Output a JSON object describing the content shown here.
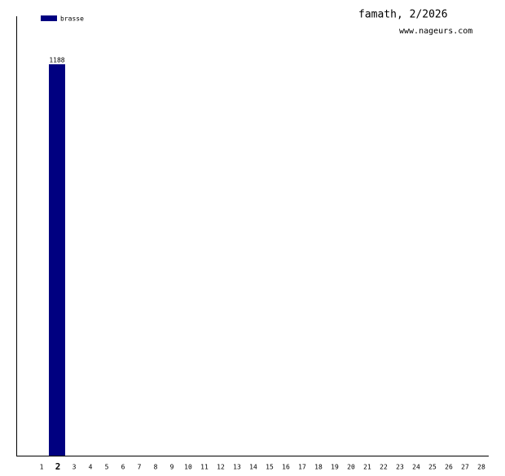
{
  "chart_data": {
    "type": "bar",
    "title": "famath, 2/2026",
    "subtitle": "www.nageurs.com",
    "categories": [
      "1",
      "2",
      "3",
      "4",
      "5",
      "6",
      "7",
      "8",
      "9",
      "10",
      "11",
      "12",
      "13",
      "14",
      "15",
      "16",
      "17",
      "18",
      "19",
      "20",
      "21",
      "22",
      "23",
      "24",
      "25",
      "26",
      "27",
      "28"
    ],
    "series": [
      {
        "name": "brasse",
        "color": "#000080",
        "values": [
          null,
          1188,
          null,
          null,
          null,
          null,
          null,
          null,
          null,
          null,
          null,
          null,
          null,
          null,
          null,
          null,
          null,
          null,
          null,
          null,
          null,
          null,
          null,
          null,
          null,
          null,
          null,
          null
        ]
      }
    ],
    "ylim": [
      0,
      1188
    ],
    "highlight_category": 1
  }
}
